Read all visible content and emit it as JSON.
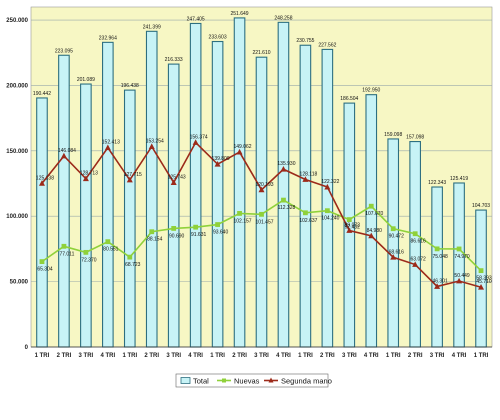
{
  "chart_data": {
    "type": "bar",
    "categories": [
      "1 TRI",
      "2 TRI",
      "3 TRI",
      "4 TRI",
      "1 TRI",
      "2 TRI",
      "3 TRI",
      "4 TRI",
      "1 TRI",
      "2 TRI",
      "3 TRI",
      "4 TRI",
      "1 TRI",
      "2 TRI",
      "3 TRI",
      "4 TRI",
      "1 TRI",
      "2 TRI",
      "3 TRI",
      "4 TRI",
      "1 TRI"
    ],
    "ylim": [
      0,
      260000
    ],
    "yticks": [
      0,
      50000,
      100000,
      150000,
      200000,
      250000
    ],
    "ytick_labels": [
      "0",
      "50.000",
      "100.000",
      "150.000",
      "200.000",
      "250.000"
    ],
    "grid": true,
    "legend_position": "bottom",
    "series": [
      {
        "name": "Total",
        "kind": "bar",
        "values": [
          190442,
          223095,
          201089,
          232964,
          196438,
          241399,
          216333,
          247405,
          233603,
          251649,
          221610,
          248258,
          230755,
          227562,
          186504,
          192950,
          159098,
          157098,
          122343,
          125419,
          104703
        ],
        "labels": [
          "190.442",
          "223.095",
          "201.089",
          "232.964",
          "196.438",
          "241.399",
          "216.333",
          "247.405",
          "233.603",
          "251.649",
          "221.610",
          "248.258",
          "230.755",
          "227.562",
          "186.504",
          "192.950",
          "159.098",
          "157.098",
          "122.343",
          "125.419",
          "104.703"
        ]
      },
      {
        "name": "Nuevas",
        "kind": "line",
        "values": [
          65304,
          77011,
          72370,
          80551,
          68723,
          88154,
          90690,
          91631,
          93640,
          102157,
          101457,
          112328,
          102637,
          104240,
          97432,
          107670,
          90472,
          86616,
          75048,
          74970,
          58393
        ],
        "labels": [
          "65.304",
          "77.011",
          "72.370",
          "80.551",
          "68.723",
          "88.154",
          "90.690",
          "91.631",
          "93.640",
          "102.157",
          "101.457",
          "112.328",
          "102.637",
          "104.240",
          "97.432",
          "107.670",
          "90.472",
          "86.616",
          "75.048",
          "74.970",
          "58.393"
        ]
      },
      {
        "name": "Segunda mano",
        "kind": "line",
        "values": [
          125138,
          146084,
          128713,
          152413,
          127715,
          153254,
          125743,
          156374,
          139809,
          149062,
          120193,
          135930,
          128118,
          122322,
          89072,
          84980,
          68616,
          63072,
          46301,
          50449,
          45710
        ],
        "labels": [
          "125.138",
          "146.084",
          "128.713",
          "152.413",
          "127.715",
          "153.254",
          "125.743",
          "156.374",
          "139.809",
          "149.062",
          "120.193",
          "135.930",
          "128.118",
          "122.322",
          "89.072",
          "84.980",
          "68.616",
          "63.072",
          "46.301",
          "50.449",
          "45.710"
        ]
      }
    ],
    "colors": {
      "bar_fill": "#c7f3f6",
      "bar_stroke": "#2d6f80",
      "nuevas": "#8fd13a",
      "segunda": "#9c2a1a",
      "plot_bg": "#f7f7c4"
    }
  }
}
